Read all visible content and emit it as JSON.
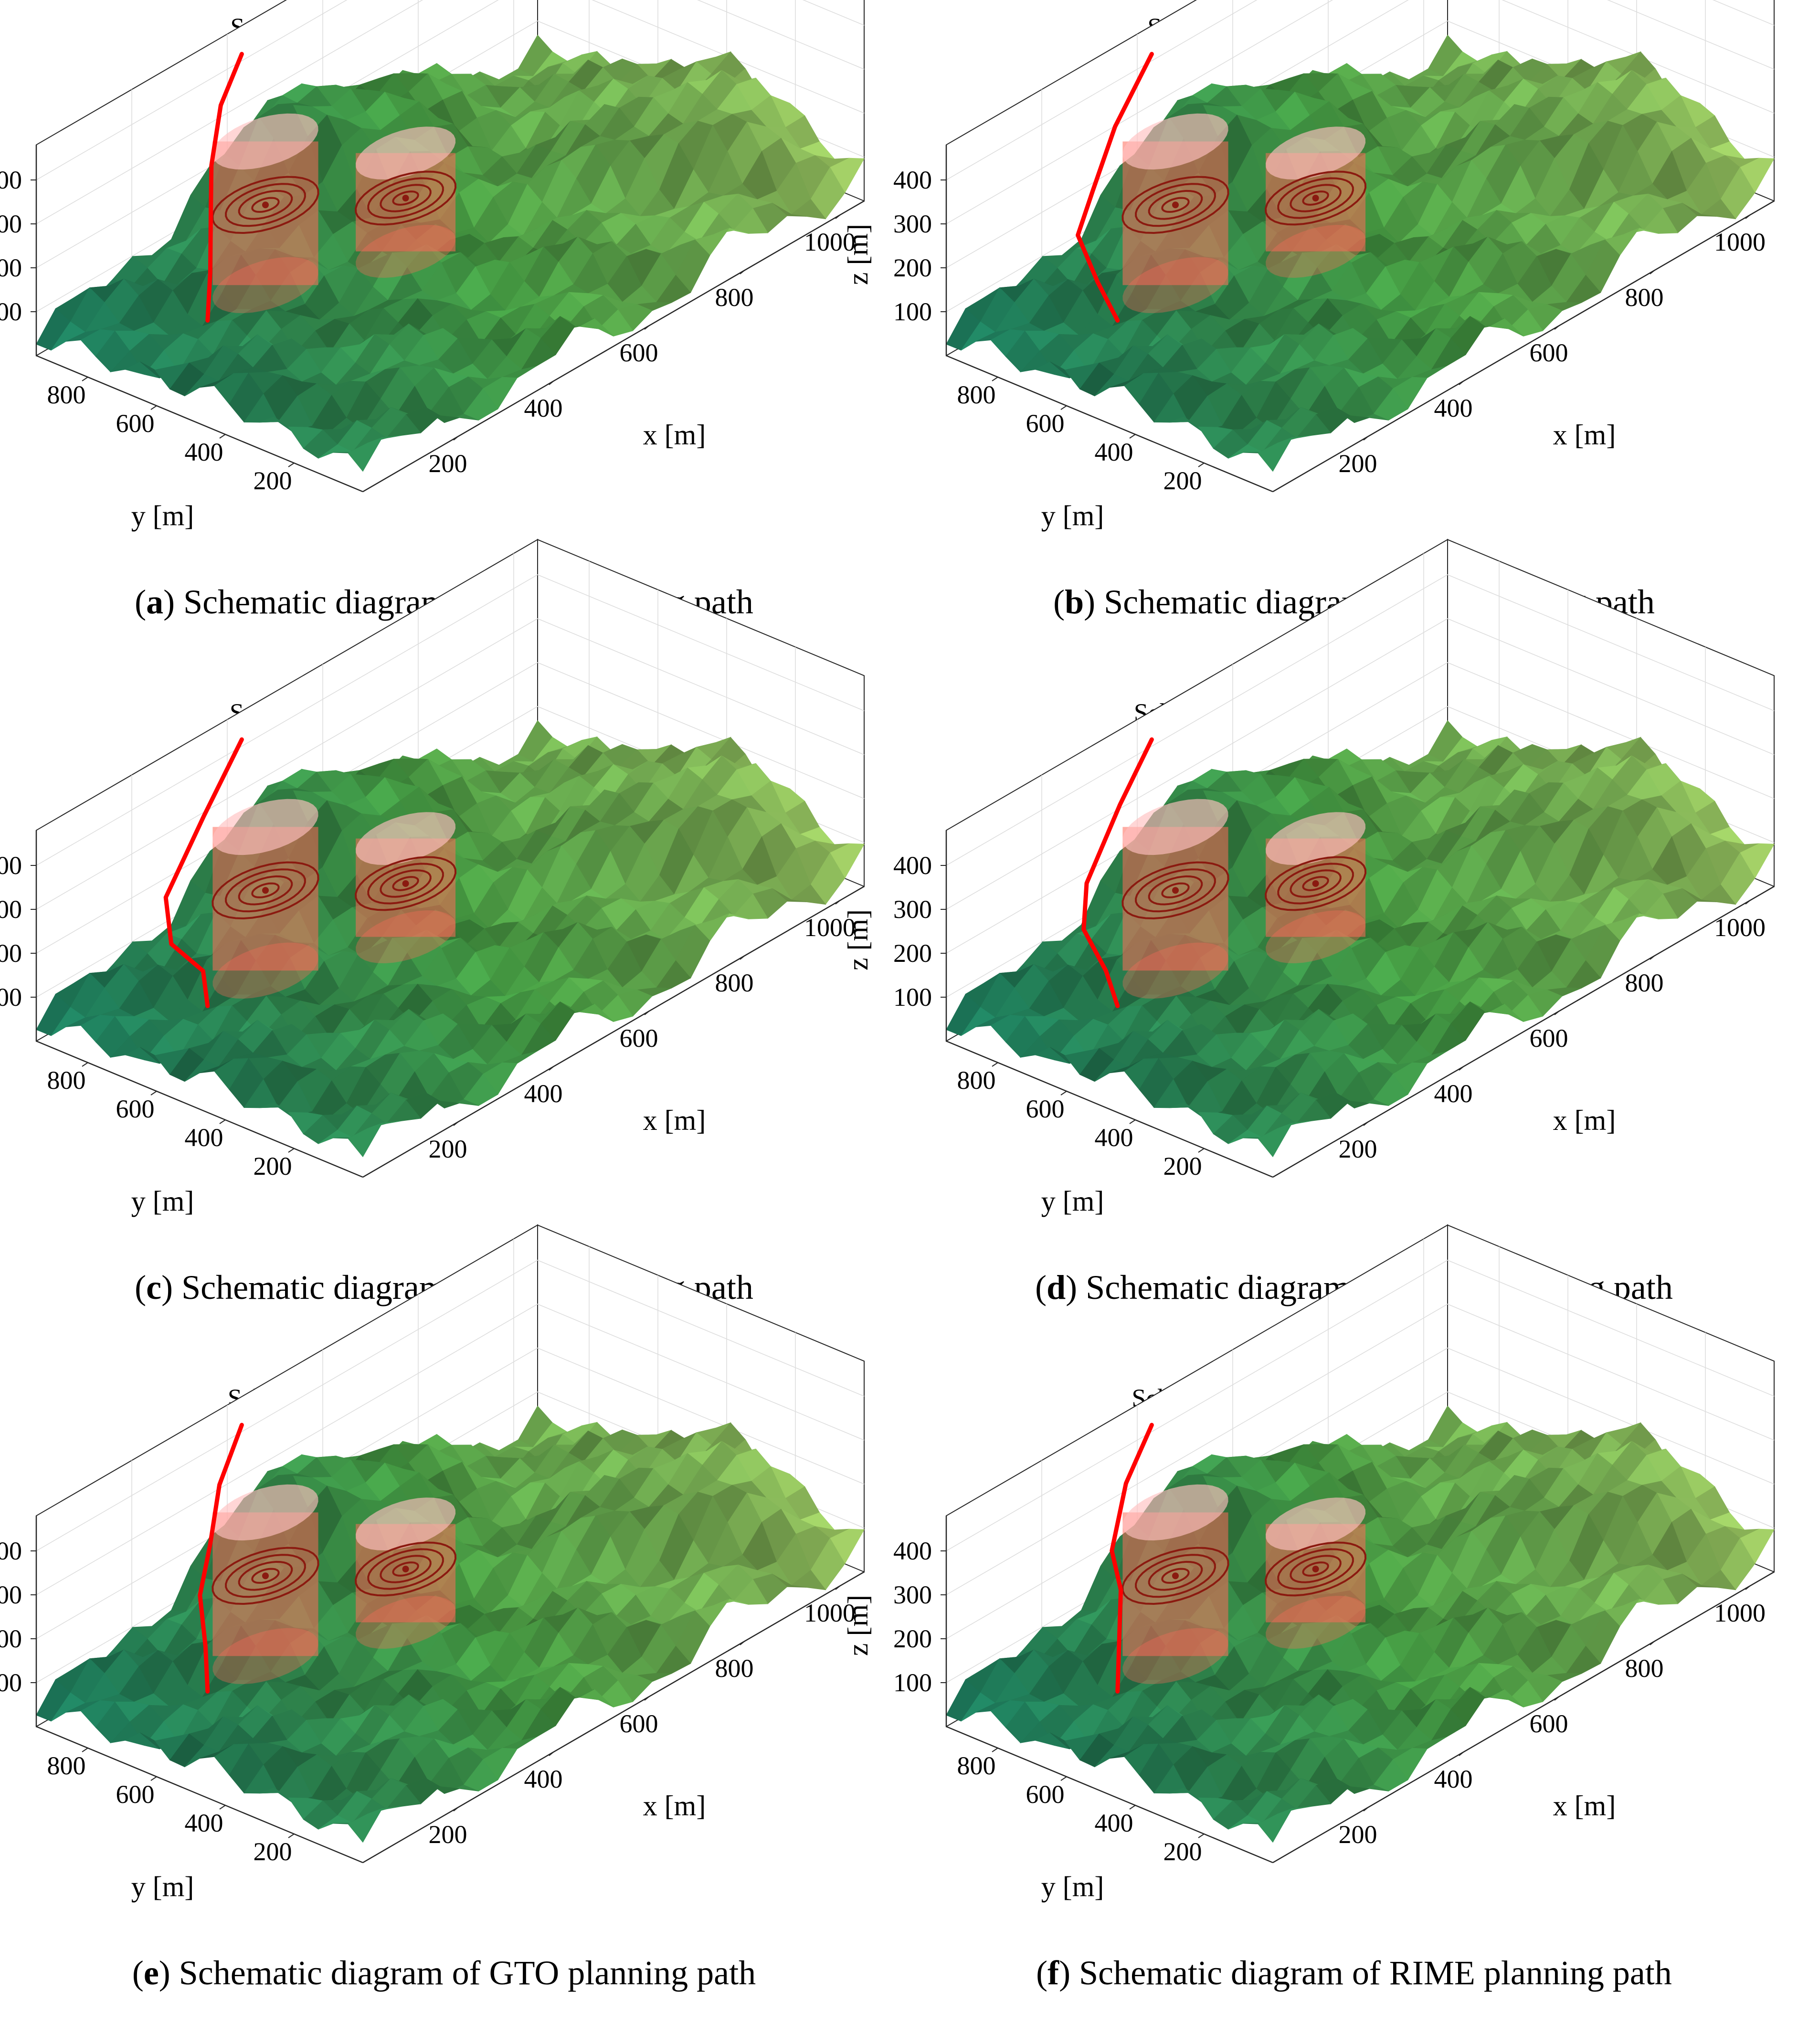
{
  "colors": {
    "path": "#ff0000",
    "obstacle_fill": "#ff6a5a",
    "obstacle_ring": "#8b1a10",
    "terrain_low": "#1f8a6a",
    "terrain_mid": "#4fb04c",
    "terrain_high": "#b8e070",
    "box": "#262626",
    "grid": "#dcdcdc"
  },
  "chart_data": [
    {
      "type": "surface3d",
      "title": "Schematic diagram of PSO planning path",
      "caption_letter": "a",
      "caption_text": " Schematic diagram of PSO planning path",
      "xlabel": "x [m]",
      "ylabel": "y [m]",
      "zlabel": "z [m]",
      "xticks": [
        "200",
        "400",
        "600",
        "800",
        "1000"
      ],
      "yticks": [
        "200",
        "400",
        "600",
        "800"
      ],
      "zticks": [
        "100",
        "200",
        "300",
        "400"
      ],
      "xlim": [
        0,
        1050
      ],
      "ylim": [
        0,
        950
      ],
      "zlim": [
        0,
        480
      ],
      "obstacles": [
        {
          "x": 300,
          "y": 700,
          "z_top": 380,
          "radius": 90
        },
        {
          "x": 500,
          "y": 570,
          "z_top": 270,
          "radius": 85
        }
      ],
      "path": [
        [
          150,
          660,
          80
        ],
        [
          170,
          680,
          170
        ],
        [
          200,
          720,
          280
        ],
        [
          230,
          760,
          350
        ],
        [
          300,
          830,
          420
        ],
        [
          380,
          880,
          470
        ]
      ]
    },
    {
      "type": "surface3d",
      "title": "Schematic diagram of SO planning path",
      "caption_letter": "b",
      "caption_text": " Schematic diagram of SO planning path",
      "xlabel": "x [m]",
      "ylabel": "y [m]",
      "zlabel": "z [m]",
      "xticks": [
        "200",
        "400",
        "600",
        "800",
        "1000"
      ],
      "yticks": [
        "200",
        "400",
        "600",
        "800"
      ],
      "zticks": [
        "100",
        "200",
        "300",
        "400"
      ],
      "xlim": [
        0,
        1050
      ],
      "ylim": [
        0,
        950
      ],
      "zlim": [
        0,
        480
      ],
      "obstacles": [
        {
          "x": 300,
          "y": 700,
          "z_top": 380,
          "radius": 90
        },
        {
          "x": 500,
          "y": 570,
          "z_top": 270,
          "radius": 85
        }
      ],
      "path": [
        [
          150,
          660,
          80
        ],
        [
          130,
          690,
          170
        ],
        [
          110,
          720,
          280
        ],
        [
          170,
          760,
          330
        ],
        [
          260,
          820,
          400
        ],
        [
          380,
          880,
          470
        ]
      ]
    },
    {
      "type": "surface3d",
      "title": "Schematic diagram of CSA planning path",
      "caption_letter": "c",
      "caption_text": " Schematic diagram of CSA planning path",
      "xlabel": "x [m]",
      "ylabel": "y [m]",
      "zlabel": "z [m]",
      "xticks": [
        "200",
        "400",
        "600",
        "800",
        "1000"
      ],
      "yticks": [
        "200",
        "400",
        "600",
        "800"
      ],
      "zticks": [
        "100",
        "200",
        "300",
        "400"
      ],
      "xlim": [
        0,
        1050
      ],
      "ylim": [
        0,
        950
      ],
      "zlim": [
        0,
        480
      ],
      "obstacles": [
        {
          "x": 300,
          "y": 700,
          "z_top": 380,
          "radius": 90
        },
        {
          "x": 500,
          "y": 570,
          "z_top": 270,
          "radius": 85
        }
      ],
      "path": [
        [
          150,
          660,
          80
        ],
        [
          155,
          680,
          150
        ],
        [
          110,
          710,
          230
        ],
        [
          120,
          740,
          320
        ],
        [
          250,
          810,
          400
        ],
        [
          380,
          880,
          470
        ]
      ]
    },
    {
      "type": "surface3d",
      "title": "Schematic diagram of DMO planning path",
      "caption_letter": "d",
      "caption_text": " Schematic diagram of DMO planning path",
      "xlabel": "x [m]",
      "ylabel": "y [m]",
      "zlabel": "z [m]",
      "xticks": [
        "200",
        "400",
        "600",
        "800",
        "1000"
      ],
      "yticks": [
        "200",
        "400",
        "600",
        "800"
      ],
      "zticks": [
        "100",
        "200",
        "300",
        "400"
      ],
      "xlim": [
        0,
        1050
      ],
      "ylim": [
        0,
        950
      ],
      "zlim": [
        0,
        480
      ],
      "obstacles": [
        {
          "x": 300,
          "y": 700,
          "z_top": 380,
          "radius": 90
        },
        {
          "x": 500,
          "y": 570,
          "z_top": 270,
          "radius": 85
        }
      ],
      "path": [
        [
          150,
          660,
          80
        ],
        [
          140,
          680,
          160
        ],
        [
          115,
          710,
          260
        ],
        [
          150,
          750,
          330
        ],
        [
          270,
          820,
          410
        ],
        [
          380,
          880,
          470
        ]
      ]
    },
    {
      "type": "surface3d",
      "title": "Schematic diagram of GTO planning path",
      "caption_letter": "e",
      "caption_text": " Schematic diagram of GTO planning path",
      "xlabel": "x [m]",
      "ylabel": "y [m]",
      "zlabel": "z [m]",
      "xticks": [
        "200",
        "400",
        "600",
        "800",
        "1000"
      ],
      "yticks": [
        "200",
        "400",
        "600",
        "800"
      ],
      "zticks": [
        "100",
        "200",
        "300",
        "400"
      ],
      "xlim": [
        0,
        1050
      ],
      "ylim": [
        0,
        950
      ],
      "zlim": [
        0,
        480
      ],
      "obstacles": [
        {
          "x": 300,
          "y": 700,
          "z_top": 380,
          "radius": 90
        },
        {
          "x": 500,
          "y": 570,
          "z_top": 270,
          "radius": 85
        }
      ],
      "path": [
        [
          150,
          660,
          80
        ],
        [
          160,
          680,
          170
        ],
        [
          170,
          710,
          270
        ],
        [
          220,
          750,
          340
        ],
        [
          290,
          820,
          410
        ],
        [
          380,
          880,
          470
        ]
      ]
    },
    {
      "type": "surface3d",
      "title": "Schematic diagram of RIME planning path",
      "caption_letter": "f",
      "caption_text": " Schematic diagram of RIME planning path",
      "xlabel": "x [m]",
      "ylabel": "y [m]",
      "zlabel": "z [m]",
      "xticks": [
        "200",
        "400",
        "600",
        "800",
        "1000"
      ],
      "yticks": [
        "200",
        "400",
        "600",
        "800"
      ],
      "zticks": [
        "100",
        "200",
        "300",
        "400"
      ],
      "xlim": [
        0,
        1050
      ],
      "ylim": [
        0,
        950
      ],
      "zlim": [
        0,
        480
      ],
      "obstacles": [
        {
          "x": 300,
          "y": 700,
          "z_top": 380,
          "radius": 90
        },
        {
          "x": 500,
          "y": 570,
          "z_top": 270,
          "radius": 85
        }
      ],
      "path": [
        [
          150,
          660,
          80
        ],
        [
          175,
          690,
          170
        ],
        [
          200,
          720,
          260
        ],
        [
          210,
          760,
          330
        ],
        [
          290,
          830,
          410
        ],
        [
          380,
          880,
          470
        ]
      ]
    }
  ]
}
